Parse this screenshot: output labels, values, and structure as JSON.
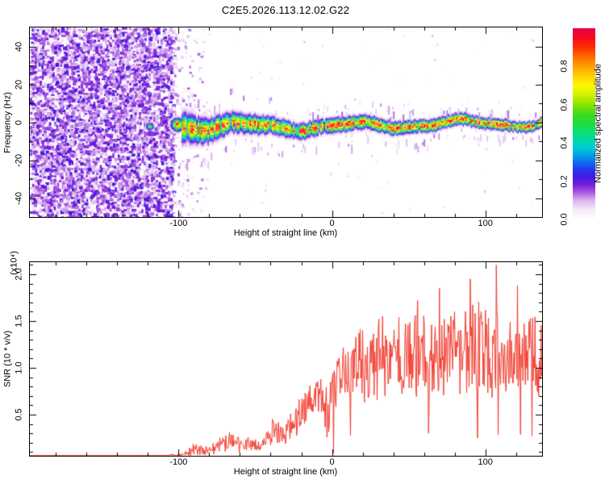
{
  "title": "C2E5.2026.113.12.02.G22",
  "background_color": "#ffffff",
  "frame_color": "#000000",
  "colorbar": {
    "title": "Normalized spectral amplitude",
    "ticks": {
      "values": [
        0.0,
        0.2,
        0.4,
        0.6,
        0.8
      ],
      "labels": [
        "0.0",
        "0.2",
        "0.4",
        "0.6",
        "0.8"
      ]
    },
    "range": [
      0.0,
      1.0
    ],
    "gradient_stops": [
      [
        0.0,
        "#ffffff"
      ],
      [
        0.05,
        "#f3e9f9"
      ],
      [
        0.1,
        "#d9b3ee"
      ],
      [
        0.14,
        "#a85ce2"
      ],
      [
        0.18,
        "#7a1fd8"
      ],
      [
        0.22,
        "#4418e2"
      ],
      [
        0.26,
        "#2436f0"
      ],
      [
        0.3,
        "#0f6ef0"
      ],
      [
        0.34,
        "#00a8e8"
      ],
      [
        0.38,
        "#00cfd0"
      ],
      [
        0.42,
        "#00dca0"
      ],
      [
        0.46,
        "#0ce070"
      ],
      [
        0.5,
        "#1edc3c"
      ],
      [
        0.55,
        "#3cda1e"
      ],
      [
        0.6,
        "#8ae400"
      ],
      [
        0.65,
        "#cff000"
      ],
      [
        0.7,
        "#fdf800"
      ],
      [
        0.75,
        "#ffd000"
      ],
      [
        0.8,
        "#ffa000"
      ],
      [
        0.85,
        "#ff6a00"
      ],
      [
        0.9,
        "#ff2e00"
      ],
      [
        0.95,
        "#f50a1e"
      ],
      [
        1.0,
        "#e4004e"
      ]
    ]
  },
  "chart_data": [
    {
      "type": "heatmap",
      "title": "C2E5.2026.113.12.02.G22",
      "xlabel": "Height of straight line (km)",
      "ylabel": "Frequency (Hz)",
      "xlim": [
        -197,
        137
      ],
      "ylim": [
        -50,
        50
      ],
      "x_ticks": {
        "values": [
          -100,
          0,
          100
        ],
        "labels": [
          "-100",
          "0",
          "100"
        ],
        "minor_step": 20
      },
      "y_ticks": {
        "values": [
          40,
          20,
          0,
          -20,
          -40
        ],
        "labels": [
          "40",
          "20",
          "0",
          "-20",
          "-40"
        ],
        "minor_step": 10
      },
      "grid": false,
      "noise_region": {
        "x_from_km": -197,
        "x_to_km": -104,
        "amplitude_range": [
          0.0,
          0.24
        ],
        "description": "dense purple speckle noise across all frequencies"
      },
      "signal_band": {
        "x_from_km": -98,
        "x_to_km": 137,
        "center_freq_hz": -1.2,
        "wiggle_amplitude_hz": 2.8,
        "halfwidth_hz_start": 4.5,
        "halfwidth_hz_end": 2.6,
        "core_amplitude_range": [
          0.5,
          1.0
        ],
        "description": "narrow wiggly high-amplitude ridge near 0 Hz with red hot spots"
      },
      "embedded_blobs": [
        {
          "x_km": -119,
          "freq_hz": -2,
          "amplitude": 0.6,
          "radius_hz": 2.0
        },
        {
          "x_km": -101,
          "freq_hz": -1,
          "amplitude": 0.92,
          "radius_hz": 3.2
        }
      ]
    },
    {
      "type": "line",
      "xlabel": "Height of straight line (km)",
      "ylabel": "SNR (10 * v/v)",
      "scale_label": "(x10⁴)",
      "line_color": "#f23b2e",
      "xlim": [
        -197,
        137
      ],
      "ylim": [
        0.06,
        2.13
      ],
      "x_ticks": {
        "values": [
          -100,
          0,
          100
        ],
        "labels": [
          "-100",
          "0",
          "100"
        ],
        "minor_step": 20
      },
      "y_ticks": {
        "values": [
          2.0,
          1.5,
          1.0,
          0.5
        ],
        "labels": [
          "2.0",
          "1.5",
          "1.0",
          "0.5"
        ],
        "minor_step": 0.1
      },
      "envelope_points": [
        [
          -197,
          0.045,
          0.015
        ],
        [
          -170,
          0.045,
          0.015
        ],
        [
          -140,
          0.05,
          0.02
        ],
        [
          -115,
          0.05,
          0.02
        ],
        [
          -100,
          0.06,
          0.03
        ],
        [
          -93,
          0.1,
          0.06
        ],
        [
          -88,
          0.14,
          0.09
        ],
        [
          -83,
          0.11,
          0.06
        ],
        [
          -78,
          0.13,
          0.08
        ],
        [
          -72,
          0.18,
          0.11
        ],
        [
          -66,
          0.22,
          0.13
        ],
        [
          -60,
          0.16,
          0.1
        ],
        [
          -55,
          0.19,
          0.12
        ],
        [
          -50,
          0.16,
          0.1
        ],
        [
          -45,
          0.22,
          0.13
        ],
        [
          -40,
          0.28,
          0.16
        ],
        [
          -35,
          0.3,
          0.18
        ],
        [
          -30,
          0.33,
          0.19
        ],
        [
          -25,
          0.4,
          0.22
        ],
        [
          -20,
          0.5,
          0.25
        ],
        [
          -15,
          0.62,
          0.25
        ],
        [
          -10,
          0.72,
          0.22
        ],
        [
          -6,
          0.68,
          0.3
        ],
        [
          -2,
          0.55,
          0.4
        ],
        [
          0,
          0.75,
          0.35
        ],
        [
          4,
          0.88,
          0.35
        ],
        [
          8,
          0.95,
          0.4
        ],
        [
          12,
          0.95,
          0.45
        ],
        [
          16,
          1.0,
          0.45
        ],
        [
          20,
          1.02,
          0.48
        ],
        [
          25,
          1.05,
          0.5
        ],
        [
          30,
          1.1,
          0.52
        ],
        [
          35,
          1.08,
          0.52
        ],
        [
          40,
          1.1,
          0.55
        ],
        [
          50,
          1.15,
          0.55
        ],
        [
          60,
          1.18,
          0.55
        ],
        [
          70,
          1.12,
          0.58
        ],
        [
          80,
          1.18,
          0.55
        ],
        [
          90,
          1.15,
          0.6
        ],
        [
          100,
          1.18,
          0.62
        ],
        [
          110,
          1.12,
          0.58
        ],
        [
          120,
          1.18,
          0.58
        ],
        [
          130,
          1.08,
          0.6
        ],
        [
          137,
          1.1,
          0.55
        ]
      ],
      "spikes": [
        [
          107,
          2.1
        ],
        [
          90,
          1.95
        ],
        [
          70,
          1.85
        ],
        [
          56,
          1.72
        ],
        [
          33,
          1.55
        ],
        [
          20,
          1.4
        ],
        [
          121,
          1.88
        ],
        [
          -39,
          0.45
        ]
      ],
      "dips": [
        [
          1,
          0.09
        ],
        [
          12,
          0.28
        ],
        [
          63,
          0.3
        ],
        [
          95,
          0.25
        ]
      ]
    }
  ]
}
